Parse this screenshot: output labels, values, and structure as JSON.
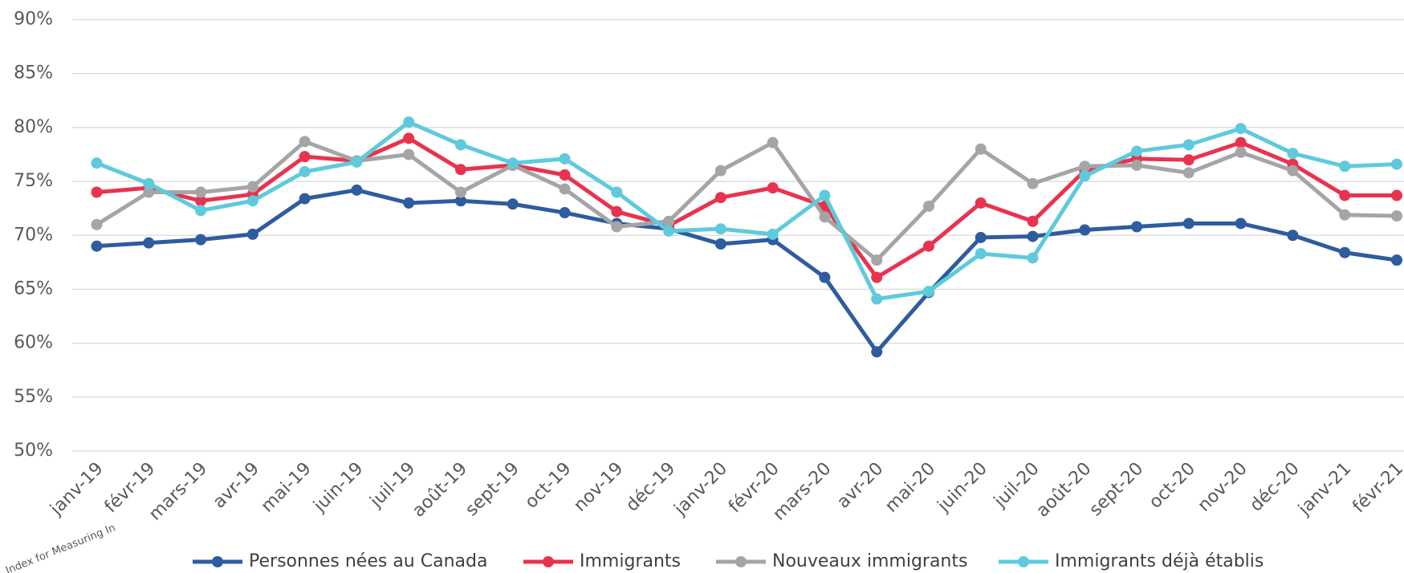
{
  "chart_data": {
    "type": "line",
    "logo_text": "Index for Measuring In",
    "categories": [
      "janv-19",
      "févr-19",
      "mars-19",
      "avr-19",
      "mai-19",
      "juin-19",
      "juil-19",
      "août-19",
      "sept-19",
      "oct-19",
      "nov-19",
      "déc-19",
      "janv-20",
      "févr-20",
      "mars-20",
      "avr-20",
      "mai-20",
      "juin-20",
      "juil-20",
      "août-20",
      "sept-20",
      "oct-20",
      "nov-20",
      "déc-20",
      "janv-21",
      "févr-21"
    ],
    "series": [
      {
        "name": "Personnes nées au Canada",
        "color": "#2e5c9e",
        "values": [
          69.0,
          69.3,
          69.6,
          70.1,
          73.4,
          74.2,
          73.0,
          73.2,
          72.9,
          72.1,
          71.1,
          70.6,
          69.2,
          69.6,
          66.1,
          59.2,
          64.7,
          69.8,
          69.9,
          70.5,
          70.8,
          71.1,
          71.1,
          70.0,
          68.4,
          67.7
        ]
      },
      {
        "name": "Immigrants",
        "color": "#e8334f",
        "values": [
          74.0,
          74.4,
          73.2,
          73.8,
          77.3,
          76.9,
          79.0,
          76.1,
          76.5,
          75.6,
          72.2,
          70.9,
          73.5,
          74.4,
          72.7,
          66.1,
          69.0,
          73.0,
          71.3,
          76.0,
          77.1,
          77.0,
          78.6,
          76.6,
          73.7,
          73.7
        ]
      },
      {
        "name": "Nouveaux immigrants",
        "color": "#a5a5a5",
        "values": [
          71.0,
          74.0,
          74.0,
          74.5,
          78.7,
          76.9,
          77.5,
          74.0,
          76.5,
          74.3,
          70.8,
          71.3,
          76.0,
          78.6,
          71.7,
          67.7,
          72.7,
          78.0,
          74.8,
          76.4,
          76.5,
          75.8,
          77.7,
          76.0,
          71.9,
          71.8
        ]
      },
      {
        "name": "Immigrants déjà établis",
        "color": "#5ecadc",
        "values": [
          76.7,
          74.8,
          72.3,
          73.2,
          75.9,
          76.8,
          80.5,
          78.4,
          76.7,
          77.1,
          74.0,
          70.4,
          70.6,
          70.1,
          73.7,
          64.1,
          64.8,
          68.3,
          67.9,
          75.5,
          77.8,
          78.4,
          79.9,
          77.6,
          76.4,
          76.6
        ]
      }
    ],
    "ylim": [
      50,
      90
    ],
    "yticks": [
      {
        "value": 50,
        "label": "50%"
      },
      {
        "value": 55,
        "label": "55%"
      },
      {
        "value": 60,
        "label": "60%"
      },
      {
        "value": 65,
        "label": "65%"
      },
      {
        "value": 70,
        "label": "70%"
      },
      {
        "value": 75,
        "label": "75%"
      },
      {
        "value": 80,
        "label": "80%"
      },
      {
        "value": 85,
        "label": "85%"
      },
      {
        "value": 90,
        "label": "90%"
      }
    ],
    "grid": true,
    "legend": "bottom"
  }
}
